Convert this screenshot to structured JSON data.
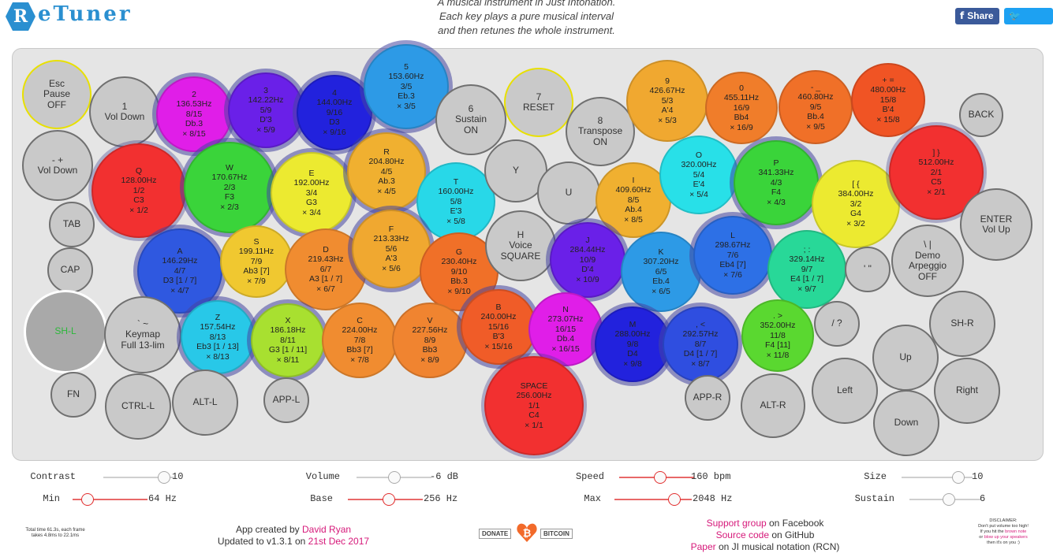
{
  "app": {
    "logo_letter": "R",
    "logo_text": "eTuner",
    "tagline": [
      "A musical instrument in Just Intonation.",
      "Each key plays a pure musical interval",
      "and then retunes the whole instrument."
    ],
    "share_label": "Share",
    "tweet_label": "Tweet"
  },
  "keys": [
    {
      "id": "esc",
      "lines": [
        "Esc",
        "Pause",
        "OFF"
      ]
    },
    {
      "id": "k1",
      "lines": [
        "1",
        "Vol Down"
      ]
    },
    {
      "id": "k2",
      "lines": [
        "2",
        "136.53Hz",
        "8/15",
        "Db.3",
        "× 8/15"
      ],
      "color": "#e01ee8"
    },
    {
      "id": "k3",
      "lines": [
        "3",
        "142.22Hz",
        "5/9",
        "D'3",
        "× 5/9"
      ],
      "color": "#6a20e8"
    },
    {
      "id": "k4",
      "lines": [
        "4",
        "144.00Hz",
        "9/16",
        "D3",
        "× 9/16"
      ],
      "color": "#2222dd"
    },
    {
      "id": "k5",
      "lines": [
        "5",
        "153.60Hz",
        "3/5",
        "Eb.3",
        "× 3/5"
      ],
      "color": "#2d9ae6"
    },
    {
      "id": "k6",
      "lines": [
        "6",
        "Sustain",
        "ON"
      ]
    },
    {
      "id": "k7",
      "lines": [
        "7",
        "RESET"
      ]
    },
    {
      "id": "k8",
      "lines": [
        "8",
        "Transpose",
        "ON"
      ]
    },
    {
      "id": "k9",
      "lines": [
        "9",
        "426.67Hz",
        "5/3",
        "A'4",
        "× 5/3"
      ],
      "color": "#f0a830"
    },
    {
      "id": "k0",
      "lines": [
        "0",
        "455.11Hz",
        "16/9",
        "Bb4",
        "× 16/9"
      ],
      "color": "#f07d2a"
    },
    {
      "id": "kminus",
      "lines": [
        "- _",
        "460.80Hz",
        "9/5",
        "Bb.4",
        "× 9/5"
      ],
      "color": "#f07028"
    },
    {
      "id": "kplus",
      "lines": [
        "+ =",
        "480.00Hz",
        "15/8",
        "B'4",
        "× 15/8"
      ],
      "color": "#f05424"
    },
    {
      "id": "back",
      "lines": [
        "BACK"
      ]
    },
    {
      "id": "volup",
      "lines": [
        "- +",
        "Vol Down"
      ]
    },
    {
      "id": "q",
      "lines": [
        "Q",
        "128.00Hz",
        "1/2",
        "C3",
        "× 1/2"
      ],
      "color": "#f23030"
    },
    {
      "id": "w",
      "lines": [
        "W",
        "170.67Hz",
        "2/3",
        "F3",
        "× 2/3"
      ],
      "color": "#3ad43a"
    },
    {
      "id": "e",
      "lines": [
        "E",
        "192.00Hz",
        "3/4",
        "G3",
        "× 3/4"
      ],
      "color": "#ecea30"
    },
    {
      "id": "r",
      "lines": [
        "R",
        "204.80Hz",
        "4/5",
        "Ab.3",
        "× 4/5"
      ],
      "color": "#f0b030"
    },
    {
      "id": "t",
      "lines": [
        "T",
        "160.00Hz",
        "5/8",
        "E'3",
        "× 5/8"
      ],
      "color": "#28d8e8"
    },
    {
      "id": "y",
      "lines": [
        "Y"
      ]
    },
    {
      "id": "u",
      "lines": [
        "U"
      ]
    },
    {
      "id": "i",
      "lines": [
        "I",
        "409.60Hz",
        "8/5",
        "Ab.4",
        "× 8/5"
      ],
      "color": "#f0b030"
    },
    {
      "id": "o",
      "lines": [
        "O",
        "320.00Hz",
        "5/4",
        "E'4",
        "× 5/4"
      ],
      "color": "#28e0e8"
    },
    {
      "id": "p",
      "lines": [
        "P",
        "341.33Hz",
        "4/3",
        "F4",
        "× 4/3"
      ],
      "color": "#3ad43a"
    },
    {
      "id": "lbrace",
      "lines": [
        "[ {",
        "384.00Hz",
        "3/2",
        "G4",
        "× 3/2"
      ],
      "color": "#ecea30"
    },
    {
      "id": "rbrace",
      "lines": [
        "] }",
        "512.00Hz",
        "2/1",
        "C5",
        "× 2/1"
      ],
      "color": "#f23030"
    },
    {
      "id": "tab",
      "lines": [
        "TAB"
      ]
    },
    {
      "id": "a",
      "lines": [
        "A",
        "146.29Hz",
        "4/7",
        "D3 [1 / 7]",
        "× 4/7"
      ],
      "color": "#2f58e0"
    },
    {
      "id": "s",
      "lines": [
        "S",
        "199.11Hz",
        "7/9",
        "Ab3 [7]",
        "× 7/9"
      ],
      "color": "#f0c830"
    },
    {
      "id": "d",
      "lines": [
        "D",
        "219.43Hz",
        "6/7",
        "A3 [1 / 7]",
        "× 6/7"
      ],
      "color": "#f08c30"
    },
    {
      "id": "f",
      "lines": [
        "F",
        "213.33Hz",
        "5/6",
        "A'3",
        "× 5/6"
      ],
      "color": "#f0a830"
    },
    {
      "id": "g",
      "lines": [
        "G",
        "230.40Hz",
        "9/10",
        "Bb.3",
        "× 9/10"
      ],
      "color": "#f07028"
    },
    {
      "id": "h",
      "lines": [
        "H",
        "Voice",
        "SQUARE"
      ]
    },
    {
      "id": "j",
      "lines": [
        "J",
        "284.44Hz",
        "10/9",
        "D'4",
        "× 10/9"
      ],
      "color": "#6a20e8"
    },
    {
      "id": "k",
      "lines": [
        "K",
        "307.20Hz",
        "6/5",
        "Eb.4",
        "× 6/5"
      ],
      "color": "#2d9ae6"
    },
    {
      "id": "l",
      "lines": [
        "L",
        "298.67Hz",
        "7/6",
        "Eb4 [7]",
        "× 7/6"
      ],
      "color": "#2d70e6"
    },
    {
      "id": "semi",
      "lines": [
        "; :",
        "329.14Hz",
        "9/7",
        "E4 [1 / 7]",
        "× 9/7"
      ],
      "color": "#28d898"
    },
    {
      "id": "quote",
      "lines": [
        "' \""
      ]
    },
    {
      "id": "demo",
      "lines": [
        "\\ |",
        "Demo",
        "Arpeggio",
        "OFF"
      ]
    },
    {
      "id": "enter",
      "lines": [
        "ENTER",
        "Vol Up"
      ]
    },
    {
      "id": "cap",
      "lines": [
        "CAP"
      ]
    },
    {
      "id": "shl",
      "lines": [
        "SH-L"
      ]
    },
    {
      "id": "keymap",
      "lines": [
        "` ~",
        "Keymap",
        "Full 13-lim"
      ]
    },
    {
      "id": "z",
      "lines": [
        "Z",
        "157.54Hz",
        "8/13",
        "Eb3 [1 / 13]",
        "× 8/13"
      ],
      "color": "#28c8e8"
    },
    {
      "id": "x",
      "lines": [
        "X",
        "186.18Hz",
        "8/11",
        "G3 [1 / 11]",
        "× 8/11"
      ],
      "color": "#a8e030"
    },
    {
      "id": "c",
      "lines": [
        "C",
        "224.00Hz",
        "7/8",
        "Bb3 [7]",
        "× 7/8"
      ],
      "color": "#f08c30"
    },
    {
      "id": "v",
      "lines": [
        "V",
        "227.56Hz",
        "8/9",
        "Bb3",
        "× 8/9"
      ],
      "color": "#f08430"
    },
    {
      "id": "b",
      "lines": [
        "B",
        "240.00Hz",
        "15/16",
        "B'3",
        "× 15/16"
      ],
      "color": "#f05c28"
    },
    {
      "id": "n",
      "lines": [
        "N",
        "273.07Hz",
        "16/15",
        "Db.4",
        "× 16/15"
      ],
      "color": "#e01ee8"
    },
    {
      "id": "m",
      "lines": [
        "M",
        "288.00Hz",
        "9/8",
        "D4",
        "× 9/8"
      ],
      "color": "#2222dd"
    },
    {
      "id": "comma",
      "lines": [
        ", <",
        "292.57Hz",
        "8/7",
        "D4 [1 / 7]",
        "× 8/7"
      ],
      "color": "#2f4ee0"
    },
    {
      "id": "period",
      "lines": [
        ". >",
        "352.00Hz",
        "11/8",
        "F4 [11]",
        "× 11/8"
      ],
      "color": "#5ad830"
    },
    {
      "id": "slash",
      "lines": [
        "/ ?"
      ]
    },
    {
      "id": "shr",
      "lines": [
        "SH-R"
      ]
    },
    {
      "id": "fn",
      "lines": [
        "FN"
      ]
    },
    {
      "id": "ctrl",
      "lines": [
        "CTRL-L"
      ]
    },
    {
      "id": "altl",
      "lines": [
        "ALT-L"
      ]
    },
    {
      "id": "appl",
      "lines": [
        "APP-L"
      ]
    },
    {
      "id": "space",
      "lines": [
        "SPACE",
        "256.00Hz",
        "1/1",
        "C4",
        "× 1/1"
      ],
      "color": "#f23030"
    },
    {
      "id": "appr",
      "lines": [
        "APP-R"
      ]
    },
    {
      "id": "altr",
      "lines": [
        "ALT-R"
      ]
    },
    {
      "id": "up",
      "lines": [
        "Up"
      ]
    },
    {
      "id": "left",
      "lines": [
        "Left"
      ]
    },
    {
      "id": "right",
      "lines": [
        "Right"
      ]
    },
    {
      "id": "down",
      "lines": [
        "Down"
      ]
    }
  ],
  "controls": {
    "contrast": {
      "label": "Contrast",
      "value": "10",
      "level": 0.85
    },
    "volume": {
      "label": "Volume",
      "value": "-6 dB",
      "level": 0.5
    },
    "speed": {
      "label": "Speed",
      "value": "160 bpm",
      "level": 0.55
    },
    "size": {
      "label": "Size",
      "value": "10",
      "level": 0.8
    },
    "min": {
      "label": "Min",
      "value": "64 Hz",
      "level": 0.2
    },
    "base": {
      "label": "Base",
      "value": "256 Hz",
      "level": 0.55
    },
    "max": {
      "label": "Max",
      "value": "2048 Hz",
      "level": 0.78
    },
    "sustain": {
      "label": "Sustain",
      "value": "6",
      "level": 0.55
    }
  },
  "footer": {
    "timing": "Total time 61.3s, each frame takes 4.8ms to 22.1ms",
    "credit_prefix": "App created by ",
    "credit_name": "David Ryan",
    "updated_prefix": "Updated to v1.3.1 on ",
    "updated_date": "21st Dec 2017",
    "donate": "DONATE",
    "bitcoin": "BITCOIN",
    "support_link": "Support group",
    "support_suffix": " on Facebook",
    "source_link": "Source code",
    "source_suffix": " on GitHub",
    "paper_link": "Paper",
    "paper_suffix": " on JI musical notation (RCN)",
    "disclaimer_title": "DISCLAIMER:",
    "disclaimer_1": "Don't put volume too high!",
    "disclaimer_2": "If you hit the",
    "disclaimer_link_1": "brown note",
    "disclaimer_3": "or",
    "disclaimer_link_2": "blow up your speakers",
    "disclaimer_4": "then it's on you :)"
  },
  "colors": {
    "accent": "#2a8fd0",
    "link": "#d6197a",
    "board": "#e5e5e5",
    "grey_key": "#c9c9c9"
  }
}
